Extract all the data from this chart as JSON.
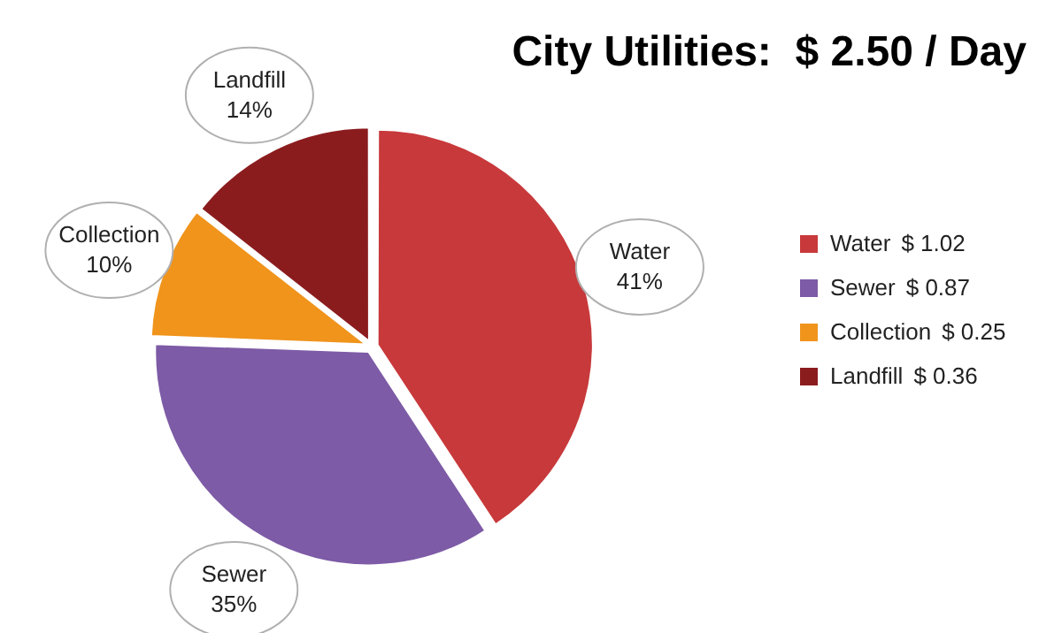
{
  "chart_data": {
    "type": "pie",
    "title": "City Utilities:  $ 2.50 / Day",
    "categories": [
      "Water",
      "Sewer",
      "Collection",
      "Landfill"
    ],
    "values": [
      1.02,
      0.87,
      0.25,
      0.36
    ],
    "value_labels": [
      "$ 1.02",
      "$ 0.87",
      "$ 0.25",
      "$ 0.36"
    ],
    "colors": [
      "#c8393b",
      "#7d5ba6",
      "#f0941c",
      "#8b1c1e"
    ],
    "annotations": [
      "41%",
      "35%",
      "10%",
      "14%"
    ],
    "legend": "right"
  }
}
